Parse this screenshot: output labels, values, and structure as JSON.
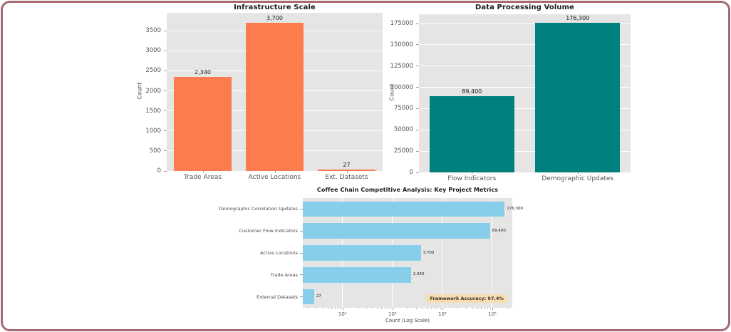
{
  "frame": {
    "border_color": "#A56A74",
    "background": "#FFFFFF",
    "plot_background": "#E5E5E5",
    "gridline_color": "#FFFFFF"
  },
  "chart_data": [
    {
      "type": "bar",
      "title": "Infrastructure Scale",
      "ylabel": "Count",
      "categories": [
        "Trade Areas",
        "Active Locations",
        "Ext. Datasets"
      ],
      "values": [
        2340,
        3700,
        27
      ],
      "value_labels": [
        "2,340",
        "3,700",
        "27"
      ],
      "yticks": [
        0,
        500,
        1000,
        1500,
        2000,
        2500,
        3000,
        3500
      ],
      "ylim": [
        0,
        3950
      ],
      "bar_color": "#FC7C4E",
      "grid": "on",
      "legend": "none"
    },
    {
      "type": "bar",
      "title": "Data Processing Volume",
      "ylabel": "Count",
      "categories": [
        "Flow Indicators",
        "Demographic Updates"
      ],
      "values": [
        89400,
        176300
      ],
      "value_labels": [
        "89,400",
        "176,300"
      ],
      "yticks": [
        0,
        25000,
        50000,
        75000,
        100000,
        125000,
        150000,
        175000
      ],
      "ylim": [
        0,
        186000
      ],
      "bar_color": "#00807E",
      "grid": "on",
      "legend": "none"
    },
    {
      "type": "horizontal-bar-log",
      "title": "Coffee Chain Competitive Analysis: Key Project Metrics",
      "xlabel": "Count (Log Scale)",
      "categories": [
        "Demographic Correlation Updates",
        "Customer Flow Indicators",
        "Active Locations",
        "Trade Areas",
        "External Datasets"
      ],
      "values": [
        176300,
        89400,
        3700,
        2340,
        27
      ],
      "value_labels": [
        "176,300",
        "89,400",
        "3,700",
        "2,340",
        "27"
      ],
      "xticks": [
        {
          "value": 100,
          "label": "10²"
        },
        {
          "value": 1000,
          "label": "10³"
        },
        {
          "value": 10000,
          "label": "10⁴"
        },
        {
          "value": 100000,
          "label": "10⁵"
        }
      ],
      "xlim": [
        16,
        251000
      ],
      "bar_color": "#87CEEB",
      "grid": "on",
      "legend": "none",
      "annotation": {
        "text": "Framework Accuracy: 97.4%",
        "background": "#F5DEB3"
      }
    }
  ]
}
